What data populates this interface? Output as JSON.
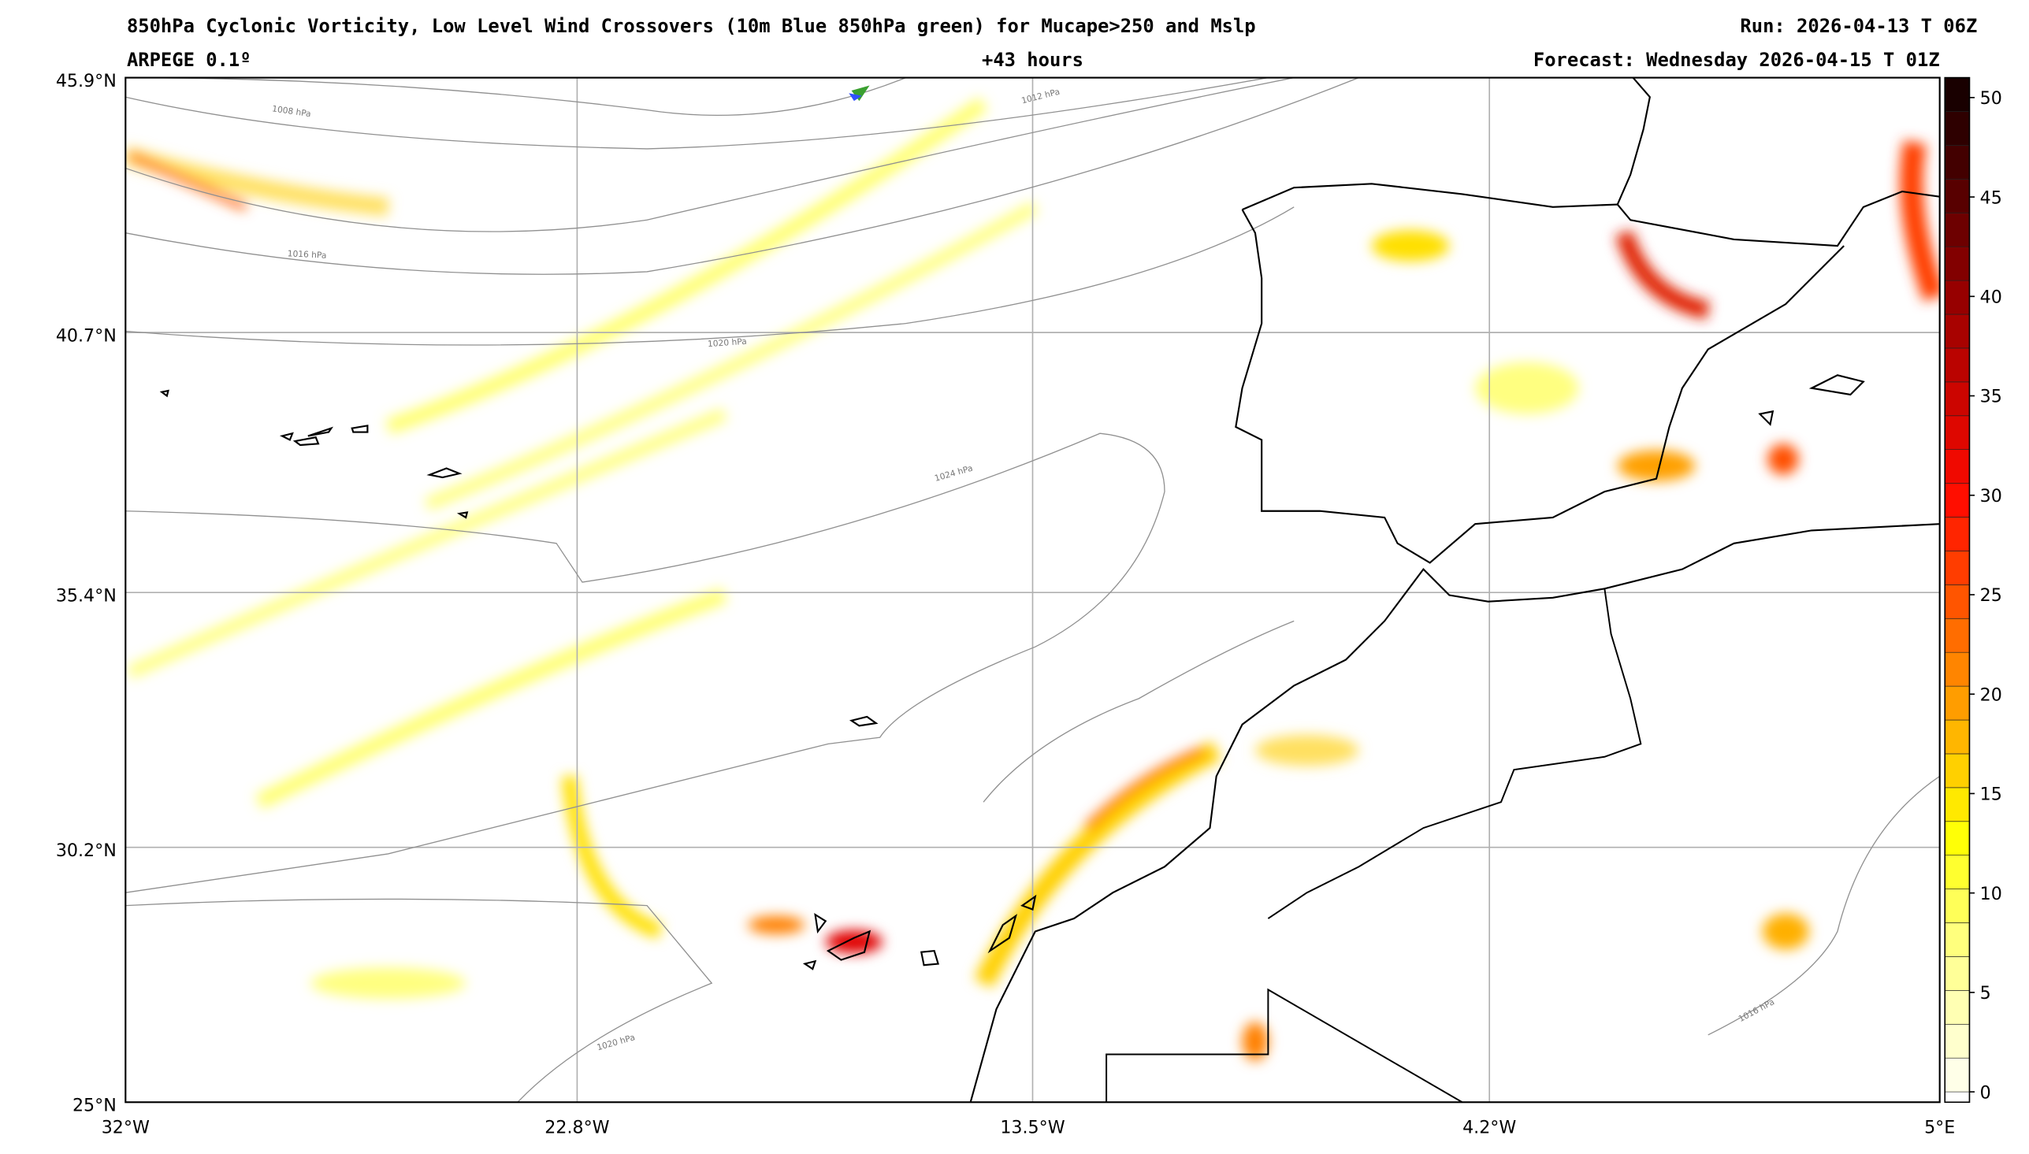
{
  "header": {
    "title": "850hPa Cyclonic Vorticity, Low Level Wind Crossovers (10m Blue 850hPa green) for Mucape>250 and Mslp",
    "run": "Run: 2026-04-13 T 06Z",
    "model": "ARPEGE 0.1º",
    "lead_time": "+43 hours",
    "forecast": "Forecast: Wednesday 2026-04-15 T 01Z"
  },
  "map": {
    "lat_labels": [
      "45.9°N",
      "40.7°N",
      "35.4°N",
      "30.2°N",
      "25°N"
    ],
    "lon_labels": [
      "32°W",
      "22.8°W",
      "13.5°W",
      "4.2°W",
      "5°E"
    ],
    "isobar_labels": [
      "1008 hPa",
      "1012 hPa",
      "1016 hPa",
      "1020 hPa",
      "1024 hPa",
      "1016 hPa",
      "1020 hPa"
    ],
    "colors": {
      "low": "#ffff80",
      "mid": "#ffd000",
      "high": "#ff3000",
      "peak": "#b00000",
      "isobar": "#909090",
      "coast": "#000000"
    }
  },
  "colorbar": {
    "min": 0,
    "max": 51,
    "step": 1.7,
    "ticks": [
      "0",
      "5",
      "10",
      "15",
      "20",
      "25",
      "30",
      "35",
      "40",
      "45",
      "50"
    ]
  }
}
